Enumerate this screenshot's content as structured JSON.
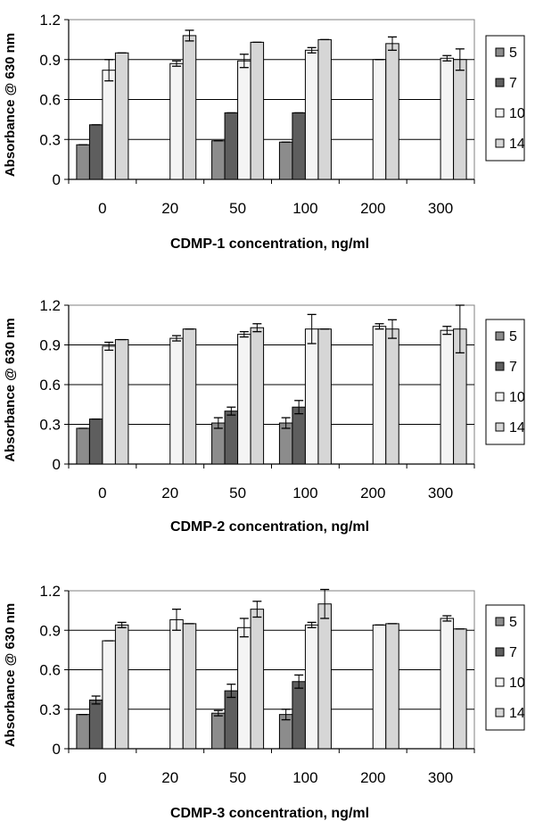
{
  "chart_data": [
    {
      "type": "bar",
      "xlabel": "CDMP-1 concentration, ng/ml",
      "ylabel": "Absorbance @ 630 nm",
      "ylim": [
        0,
        1.2
      ],
      "yticks": [
        "0",
        "0.3",
        "0.6",
        "0.9",
        "1.2"
      ],
      "categories": [
        "0",
        "20",
        "50",
        "100",
        "200",
        "300"
      ],
      "grid": true,
      "legend_position": "right",
      "series": [
        {
          "name": "5",
          "color": "#8c8c8c",
          "values": [
            0.26,
            null,
            0.29,
            0.28,
            null,
            null
          ],
          "errors": [
            0,
            null,
            0,
            0,
            null,
            null
          ]
        },
        {
          "name": "7",
          "color": "#5e5e5e",
          "values": [
            0.41,
            null,
            0.5,
            0.5,
            null,
            null
          ],
          "errors": [
            0,
            null,
            0,
            0,
            null,
            null
          ]
        },
        {
          "name": "10",
          "color": "#f4f4f4",
          "values": [
            0.82,
            0.87,
            0.89,
            0.97,
            0.9,
            0.91
          ],
          "errors": [
            0.08,
            0.02,
            0.05,
            0.02,
            0,
            0.02
          ]
        },
        {
          "name": "14",
          "color": "#d6d6d6",
          "values": [
            0.95,
            1.08,
            1.03,
            1.05,
            1.02,
            0.9
          ],
          "errors": [
            0,
            0.04,
            0,
            0,
            0.05,
            0.08
          ]
        }
      ]
    },
    {
      "type": "bar",
      "xlabel": "CDMP-2 concentration, ng/ml",
      "ylabel": "Absorbance @ 630 nm",
      "ylim": [
        0,
        1.2
      ],
      "yticks": [
        "0",
        "0.3",
        "0.6",
        "0.9",
        "1.2"
      ],
      "categories": [
        "0",
        "20",
        "50",
        "100",
        "200",
        "300"
      ],
      "grid": true,
      "legend_position": "right",
      "series": [
        {
          "name": "5",
          "color": "#8c8c8c",
          "values": [
            0.27,
            null,
            0.31,
            0.31,
            null,
            null
          ],
          "errors": [
            0,
            null,
            0.04,
            0.04,
            null,
            null
          ]
        },
        {
          "name": "7",
          "color": "#5e5e5e",
          "values": [
            0.34,
            null,
            0.4,
            0.43,
            null,
            null
          ],
          "errors": [
            0,
            null,
            0.03,
            0.05,
            null,
            null
          ]
        },
        {
          "name": "10",
          "color": "#f4f4f4",
          "values": [
            0.89,
            0.95,
            0.98,
            1.02,
            1.04,
            1.01
          ],
          "errors": [
            0.03,
            0.02,
            0.02,
            0.11,
            0.02,
            0.03
          ]
        },
        {
          "name": "14",
          "color": "#d6d6d6",
          "values": [
            0.94,
            1.02,
            1.03,
            1.02,
            1.02,
            1.02
          ],
          "errors": [
            0,
            0,
            0.03,
            0,
            0.07,
            0.18
          ]
        }
      ]
    },
    {
      "type": "bar",
      "xlabel": "CDMP-3 concentration, ng/ml",
      "ylabel": "Absorbance @ 630 nm",
      "ylim": [
        0,
        1.2
      ],
      "yticks": [
        "0",
        "0.3",
        "0.6",
        "0.9",
        "1.2"
      ],
      "categories": [
        "0",
        "20",
        "50",
        "100",
        "200",
        "300"
      ],
      "grid": true,
      "legend_position": "right",
      "series": [
        {
          "name": "5",
          "color": "#8c8c8c",
          "values": [
            0.26,
            null,
            0.27,
            0.26,
            null,
            null
          ],
          "errors": [
            0,
            null,
            0.02,
            0.04,
            null,
            null
          ]
        },
        {
          "name": "7",
          "color": "#5e5e5e",
          "values": [
            0.37,
            null,
            0.44,
            0.51,
            null,
            null
          ],
          "errors": [
            0.03,
            null,
            0.05,
            0.05,
            null,
            null
          ]
        },
        {
          "name": "10",
          "color": "#f4f4f4",
          "values": [
            0.82,
            0.98,
            0.92,
            0.94,
            0.94,
            0.99
          ],
          "errors": [
            0,
            0.08,
            0.07,
            0.02,
            0,
            0.02
          ]
        },
        {
          "name": "14",
          "color": "#d6d6d6",
          "values": [
            0.94,
            0.95,
            1.06,
            1.1,
            0.95,
            0.91
          ],
          "errors": [
            0.02,
            0,
            0.06,
            0.11,
            0,
            0
          ]
        }
      ]
    }
  ]
}
